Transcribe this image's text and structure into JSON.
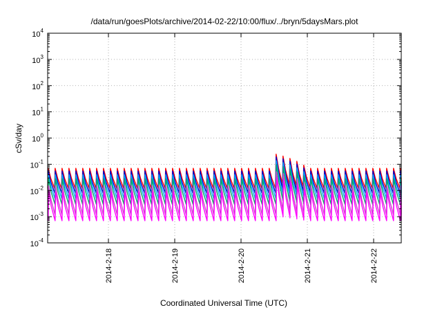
{
  "chart_data": {
    "type": "line",
    "title": "/data/run/goesPlots/archive/2014-02-22/10:00/flux/../bryn/5daysMars.plot",
    "xlabel": "Coordinated Universal Time (UTC)",
    "ylabel": "cSv/day",
    "y_scale": "log",
    "ylim": [
      0.0001,
      10000
    ],
    "y_ticks": [
      {
        "base": "10",
        "exp": "4"
      },
      {
        "base": "10",
        "exp": "3"
      },
      {
        "base": "10",
        "exp": "2"
      },
      {
        "base": "10",
        "exp": "1"
      },
      {
        "base": "10",
        "exp": "0"
      },
      {
        "base": "10",
        "exp": "-1"
      },
      {
        "base": "10",
        "exp": "-2"
      },
      {
        "base": "10",
        "exp": "-3"
      },
      {
        "base": "10",
        "exp": "-4"
      }
    ],
    "xlim": [
      "2014-02-17T02:00",
      "2014-02-22T10:00"
    ],
    "x_ticks": [
      "2014-2-18",
      "2014-2-19",
      "2014-2-20",
      "2014-2-21",
      "2014-2-22"
    ],
    "grid": true,
    "legend": "none",
    "period_hours": 2.5,
    "series": [
      {
        "color": "#ff0000",
        "peak": 0.07,
        "trough": 0.012
      },
      {
        "color": "#0000cc",
        "peak": 0.055,
        "trough": 0.008
      },
      {
        "color": "#00aaff",
        "peak": 0.04,
        "trough": 0.005
      },
      {
        "color": "#00aa66",
        "peak": 0.028,
        "trough": 0.003
      },
      {
        "color": "#cc44cc",
        "peak": 0.015,
        "trough": 0.0012
      },
      {
        "color": "#ff00ff",
        "peak": 0.009,
        "trough": 0.0007
      }
    ],
    "events": [
      {
        "start": "2014-02-20T12:00",
        "end": "2014-02-21T00:00",
        "peak": 0.25,
        "trough": 0.025
      }
    ]
  }
}
